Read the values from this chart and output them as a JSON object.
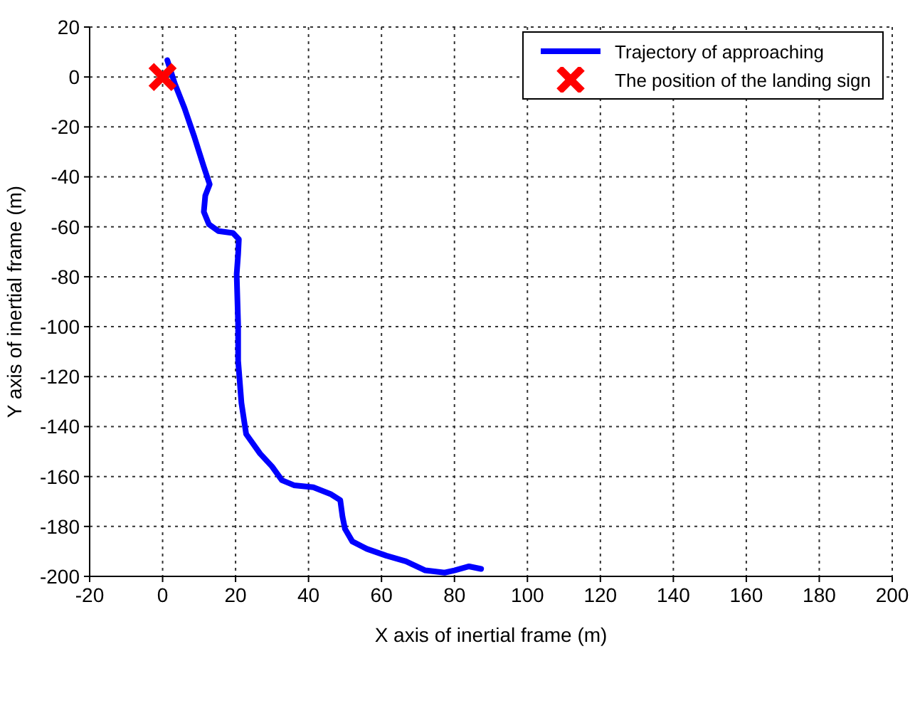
{
  "chart_data": {
    "type": "line",
    "xlabel": "X axis of inertial frame (m)",
    "ylabel": "Y axis of inertial frame (m)",
    "xlim": [
      -20,
      200
    ],
    "xticks": [
      -20,
      0,
      20,
      40,
      60,
      80,
      100,
      120,
      140,
      160,
      180,
      200
    ],
    "ylim": [
      -200,
      20
    ],
    "yticks": [
      -200,
      -180,
      -160,
      -140,
      -120,
      -100,
      -80,
      -60,
      -40,
      -20,
      0,
      20
    ],
    "grid": true,
    "legend": "top right",
    "series": [
      {
        "name": "Trajectory of approaching",
        "color": "#0000ff",
        "marker": "none",
        "line_style": "solid",
        "x": [
          1.3,
          3.3,
          6,
          8.7,
          11.3,
          12.9,
          11.7,
          11.3,
          12.7,
          15.3,
          19.3,
          20.9,
          20.7,
          20.3,
          20.7,
          20.7,
          21.6,
          22.9,
          26.7,
          30,
          32.7,
          36,
          41.3,
          46,
          48.7,
          49.3,
          50,
          52,
          56,
          61.3,
          66.7,
          72,
          77.3,
          80,
          84,
          87.3
        ],
        "values": [
          6.7,
          -2.5,
          -12.5,
          -24,
          -36,
          -43,
          -47.5,
          -54,
          -59,
          -61.7,
          -62.5,
          -65,
          -71,
          -79,
          -99,
          -113.6,
          -130.5,
          -143,
          -150.8,
          -156,
          -161.5,
          -163.5,
          -164.3,
          -167,
          -169.5,
          -176,
          -181,
          -186,
          -189,
          -191.7,
          -194,
          -197.6,
          -198.5,
          -197.6,
          -196,
          -197
        ]
      },
      {
        "name": "The position of the landing sign",
        "type": "scatter",
        "color": "#ff0000",
        "marker": "cross",
        "x": [
          0
        ],
        "values": [
          0
        ]
      }
    ]
  }
}
